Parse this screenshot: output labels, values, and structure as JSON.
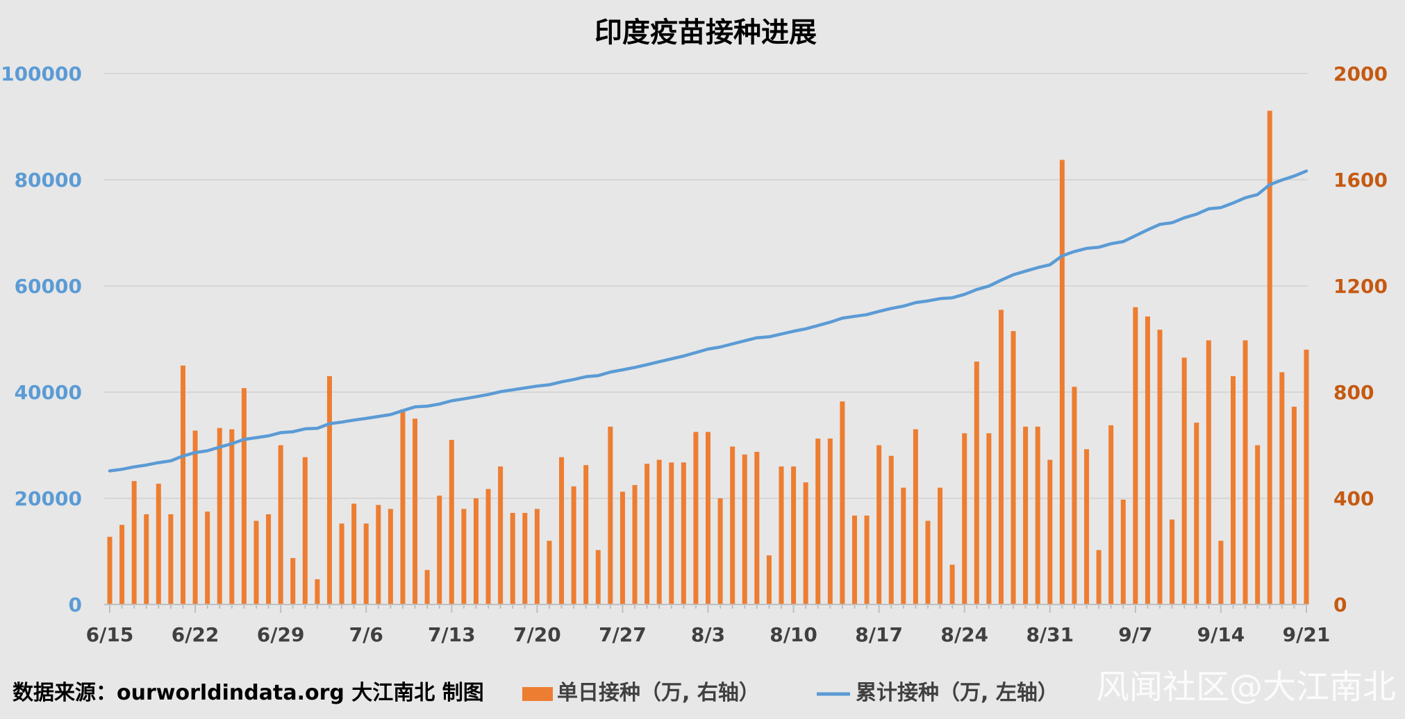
{
  "source_note": "数据来源：ourworldindata.org 大江南北 制图",
  "watermark": "风闻社区@大江南北",
  "colors": {
    "bar": "#ed7d31",
    "line": "#5b9bd5",
    "left_axis": "#5b9bd5",
    "right_axis": "#c55a11",
    "grid": "#d6d6d6",
    "background": "#e7e7e7"
  },
  "chart_data": {
    "type": "bar+line",
    "title": "印度疫苗接种进展",
    "grid": true,
    "legend_position": "bottom",
    "x_tick_labels": [
      "6/15",
      "6/22",
      "6/29",
      "7/6",
      "7/13",
      "7/20",
      "7/27",
      "8/3",
      "8/10",
      "8/17",
      "8/24",
      "8/31",
      "9/7",
      "9/14",
      "9/21"
    ],
    "y_left": {
      "range": [
        0,
        100000
      ],
      "ticks": [
        0,
        20000,
        40000,
        60000,
        80000,
        100000
      ]
    },
    "y_right": {
      "range": [
        0,
        2000
      ],
      "ticks": [
        0,
        400,
        800,
        1200,
        1600,
        2000
      ]
    },
    "series": [
      {
        "name": "单日接种（万, 右轴）",
        "type": "bar",
        "axis": "right",
        "values": [
          255,
          300,
          465,
          340,
          455,
          340,
          900,
          655,
          350,
          665,
          660,
          815,
          315,
          340,
          600,
          175,
          555,
          95,
          860,
          305,
          380,
          305,
          375,
          360,
          735,
          700,
          130,
          410,
          620,
          360,
          400,
          435,
          520,
          345,
          345,
          360,
          240,
          555,
          445,
          525,
          205,
          670,
          425,
          450,
          530,
          545,
          535,
          535,
          650,
          650,
          400,
          595,
          565,
          575,
          185,
          520,
          520,
          460,
          625,
          625,
          765,
          335,
          335,
          600,
          560,
          440,
          660,
          315,
          440,
          150,
          645,
          915,
          645,
          1110,
          1030,
          670,
          670,
          545,
          1675,
          820,
          585,
          205,
          675,
          395,
          1120,
          1085,
          1035,
          320,
          930,
          685,
          995,
          240,
          860,
          995,
          600,
          1860,
          875,
          745,
          960
        ]
      },
      {
        "name": "累计接种（万, 左轴）",
        "type": "line",
        "axis": "left",
        "values": [
          25160,
          25460,
          25920,
          26260,
          26720,
          27060,
          27960,
          28610,
          28960,
          29630,
          30290,
          31100,
          31420,
          31760,
          32360,
          32530,
          33090,
          33190,
          34050,
          34350,
          34730,
          35040,
          35410,
          35770,
          36510,
          37210,
          37340,
          37750,
          38370,
          38730,
          39130,
          39560,
          40080,
          40430,
          40780,
          41140,
          41380,
          41930,
          42380,
          42900,
          43110,
          43780,
          44200,
          44650,
          45180,
          45730,
          46260,
          46800,
          47450,
          48100,
          48500,
          49090,
          49660,
          50230,
          50420,
          50940,
          51460,
          51920,
          52540,
          53170,
          53930,
          54270,
          54600,
          55200,
          55760,
          56200,
          56860,
          57170,
          57610,
          57760,
          58410,
          59320,
          59970,
          61080,
          62110,
          62780,
          63450,
          63990,
          65670,
          66490,
          67070,
          67280,
          67950,
          68350,
          69470,
          70560,
          71590,
          71910,
          72840,
          73520,
          74520,
          74760,
          75620,
          76610,
          77210,
          79070,
          79950,
          80690,
          81650
        ]
      }
    ]
  }
}
